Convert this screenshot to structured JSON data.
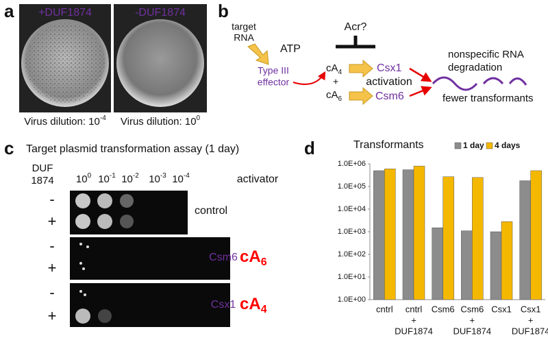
{
  "panel_a": {
    "label": "a",
    "plates": [
      {
        "title": "+DUF1874",
        "caption": "Virus dilution: 10",
        "exponent": "-4"
      },
      {
        "title": "-DUF1874",
        "caption": "Virus dilution: 10",
        "exponent": "0"
      }
    ]
  },
  "panel_b": {
    "label": "b",
    "target_rna": [
      "target",
      "RNA"
    ],
    "effector": [
      "Type III",
      "effector"
    ],
    "atp": "ATP",
    "acr": "Acr?",
    "ca4": {
      "base": "cA",
      "sub": "4"
    },
    "plus": "+",
    "ca6": {
      "base": "cA",
      "sub": "6"
    },
    "csx1": "Csx1",
    "activation": "activation",
    "csm6": "Csm6",
    "outcome": [
      "nonspecific RNA",
      "degradation"
    ],
    "fewer": "fewer transformants"
  },
  "panel_c": {
    "label": "c",
    "title": "Target plasmid transformation assay (1 day)",
    "duf": [
      "DUF",
      "1874"
    ],
    "dilutions": [
      {
        "base": "10",
        "exp": "0"
      },
      {
        "base": "10",
        "exp": "-1"
      },
      {
        "base": "10",
        "exp": "-2"
      },
      {
        "base": "10",
        "exp": "-3"
      },
      {
        "base": "10",
        "exp": "-4"
      }
    ],
    "activator_header": "activator",
    "rows": [
      {
        "signs": [
          "-",
          "+"
        ],
        "name": "control"
      },
      {
        "signs": [
          "-",
          "+"
        ],
        "name": "Csm6",
        "activator": {
          "base": "cA",
          "sub": "6"
        }
      },
      {
        "signs": [
          "-",
          "+"
        ],
        "name": "Csx1",
        "activator": {
          "base": "cA",
          "sub": "4"
        }
      }
    ]
  },
  "chart_data": {
    "type": "bar",
    "label": "d",
    "title": "Transformants",
    "categories": [
      [
        "cntrl"
      ],
      [
        "cntrl",
        "+",
        "DUF1874"
      ],
      [
        "Csm6"
      ],
      [
        "Csm6",
        "+",
        "DUF1874"
      ],
      [
        "Csx1"
      ],
      [
        "Csx1",
        "+",
        "DUF1874"
      ]
    ],
    "series": [
      {
        "name": "1 day",
        "color": "#8c8c8c",
        "values": [
          500000,
          550000,
          1500,
          1100,
          1000,
          180000
        ]
      },
      {
        "name": "4 days",
        "color": "#f5b800",
        "values": [
          600000,
          800000,
          270000,
          250000,
          2800,
          500000
        ]
      }
    ],
    "log_scale": true,
    "ylim": [
      1,
      1000000
    ],
    "yticks": [
      {
        "value": 1,
        "label": "1.0E+00"
      },
      {
        "value": 10,
        "label": "1.0E+01"
      },
      {
        "value": 100,
        "label": "1.0E+02"
      },
      {
        "value": 1000,
        "label": "1.0E+03"
      },
      {
        "value": 10000,
        "label": "1.0E+04"
      },
      {
        "value": 100000,
        "label": "1.0E+05"
      },
      {
        "value": 1000000,
        "label": "1.0E+06"
      }
    ],
    "grid": false,
    "legend": "top-right"
  }
}
